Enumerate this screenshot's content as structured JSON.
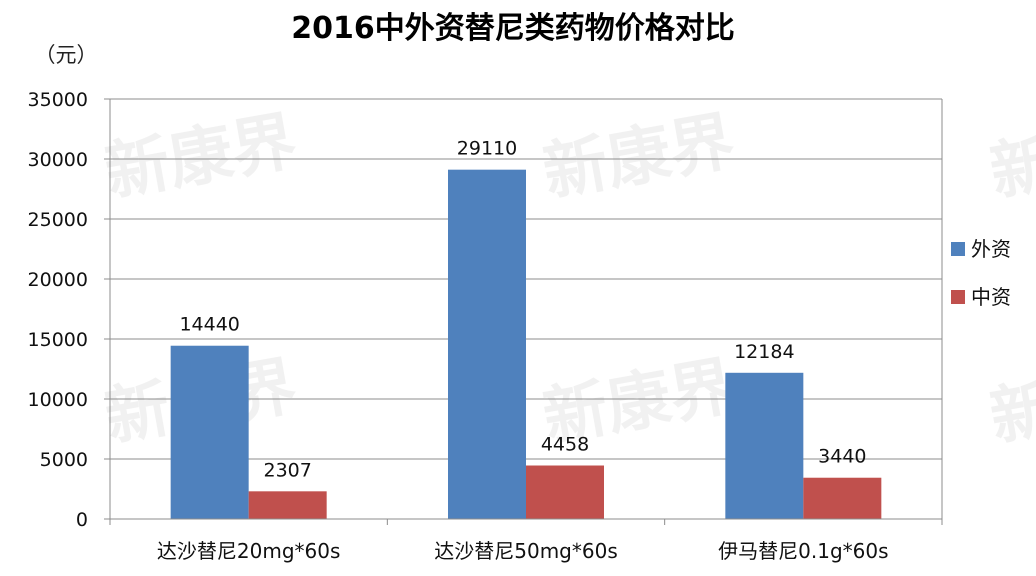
{
  "chart_data": {
    "type": "bar",
    "title": "2016中外资替尼类药物价格对比",
    "ylabel": "（元）",
    "xlabel": "",
    "categories": [
      "达沙替尼20mg*60s",
      "达沙替尼50mg*60s",
      "伊马替尼0.1g*60s"
    ],
    "series": [
      {
        "name": "外资",
        "color": "#4F81BD",
        "values": [
          14440,
          29110,
          12184
        ]
      },
      {
        "name": "中资",
        "color": "#C0504D",
        "values": [
          2307,
          4458,
          3440
        ]
      }
    ],
    "ylim": [
      0,
      35000
    ],
    "yticks": [
      0,
      5000,
      10000,
      15000,
      20000,
      25000,
      30000,
      35000
    ],
    "grid": true,
    "legend": "right",
    "watermark": "新康界"
  }
}
